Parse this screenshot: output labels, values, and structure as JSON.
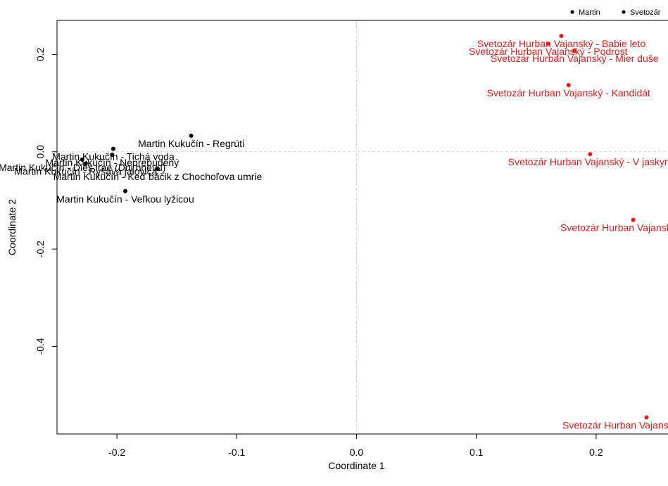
{
  "chart_data": {
    "type": "scatter",
    "xlabel": "Coordinate 1",
    "ylabel": "Coordinate 2",
    "xlim": [
      -0.25,
      0.26
    ],
    "ylim": [
      -0.58,
      0.27
    ],
    "x_ticks": [
      -0.2,
      -0.1,
      0.0,
      0.1,
      0.2
    ],
    "x_tick_labels": [
      "-0.2",
      "-0.1",
      "0.0",
      "0.1",
      "0.2"
    ],
    "y_ticks": [
      -0.4,
      -0.2,
      0.0,
      0.2
    ],
    "y_tick_labels": [
      "-0.4",
      "-0.2",
      "0.0",
      "0.2"
    ],
    "reference_lines": {
      "x": 0,
      "y": 0,
      "style": "dashed",
      "color": "#d3d3d3"
    },
    "legend": {
      "placement": "top-right",
      "entries": [
        "Martin",
        "Svetozár"
      ]
    },
    "series": [
      {
        "name": "Martin",
        "color": "#000000",
        "points": [
          {
            "x": -0.138,
            "y": 0.033,
            "label": "Martin Kukučín - Regrúti"
          },
          {
            "x": -0.203,
            "y": 0.006,
            "label": "Martin Kukučín - Tichá voda"
          },
          {
            "x": -0.204,
            "y": -0.006,
            "label": "Martin Kukučín - Neprebudený"
          },
          {
            "x": -0.229,
            "y": -0.016,
            "label": "Martin Kukučín - Dies irae (Dni hnevu)"
          },
          {
            "x": -0.226,
            "y": -0.024,
            "label": "Martin Kukučín - Ryšavá jalovica"
          },
          {
            "x": -0.166,
            "y": -0.035,
            "label": "Martin Kukučín - Keď báčik z Chochoľova umrie"
          },
          {
            "x": -0.193,
            "y": -0.081,
            "label": "Martin Kukučín - Veľkou lyžicou"
          }
        ]
      },
      {
        "name": "Svetozár",
        "color": "#e41a1c",
        "points": [
          {
            "x": 0.171,
            "y": 0.238,
            "label": "Svetozár  Hurban Vajanský - Babie leto"
          },
          {
            "x": 0.16,
            "y": 0.222,
            "label": "Svetozár  Hurban Vajanský - Podrost"
          },
          {
            "x": 0.182,
            "y": 0.208,
            "label": "Svetozár  Hurban Vajanský - Mier duše"
          },
          {
            "x": 0.177,
            "y": 0.137,
            "label": "Svetozár  Hurban Vajanský - Kandidát"
          },
          {
            "x": 0.195,
            "y": -0.005,
            "label": "Svetozár  Hurban Vajanský - V jaskyni"
          },
          {
            "x": 0.231,
            "y": -0.14,
            "label": "Svetozár  Hurban Vajanský - Tatry"
          },
          {
            "x": 0.242,
            "y": -0.546,
            "label": "Svetozár  Hurban Vajanský - Na Dunaji"
          }
        ]
      }
    ]
  }
}
